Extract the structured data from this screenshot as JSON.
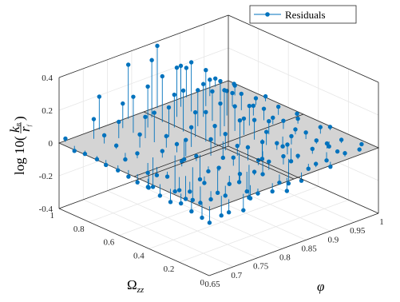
{
  "chart_data": {
    "type": "scatter",
    "subtype": "3d-stem",
    "legend": {
      "label": "Residuals",
      "position": "top-right"
    },
    "colors": {
      "marker": "#0072BD",
      "plane": "#d4d4d4",
      "axis": "#262626",
      "grid": "#e6e6e6"
    },
    "grid": true,
    "x_axis": {
      "label": "φ",
      "range": [
        0.65,
        1.0
      ],
      "ticks": [
        {
          "v": 0.65,
          "label": "0.65"
        },
        {
          "v": 0.7,
          "label": "0.7"
        },
        {
          "v": 0.75,
          "label": "0.75"
        },
        {
          "v": 0.8,
          "label": "0.8"
        },
        {
          "v": 0.85,
          "label": "0.85"
        },
        {
          "v": 0.9,
          "label": "0.9"
        },
        {
          "v": 0.95,
          "label": "0.95"
        },
        {
          "v": 1.0,
          "label": "1"
        }
      ]
    },
    "y_axis": {
      "label_main": "Ω",
      "label_sub": "zz",
      "range": [
        0,
        1
      ],
      "ticks": [
        {
          "v": 0,
          "label": "0"
        },
        {
          "v": 0.2,
          "label": "0.2"
        },
        {
          "v": 0.4,
          "label": "0.4"
        },
        {
          "v": 0.6,
          "label": "0.6"
        },
        {
          "v": 0.8,
          "label": "0.8"
        },
        {
          "v": 1,
          "label": "1"
        }
      ]
    },
    "z_axis": {
      "label_prefix": "log 10(",
      "label_num": "k",
      "label_num_sub": "B",
      "label_den": "r",
      "label_den_sub": "f",
      "label_suffix": ")",
      "range": [
        -0.4,
        0.4
      ],
      "ticks": [
        {
          "v": -0.4,
          "label": "-0.4"
        },
        {
          "v": -0.2,
          "label": "-0.2"
        },
        {
          "v": 0,
          "label": "0"
        },
        {
          "v": 0.2,
          "label": "0.2"
        },
        {
          "v": 0.4,
          "label": "0.4"
        }
      ]
    },
    "points": [
      [
        0.66,
        0.99,
        0.02
      ],
      [
        0.66,
        0.93,
        -0.03
      ],
      [
        0.66,
        0.86,
        -0.02
      ],
      [
        0.66,
        0.78,
        -0.02
      ],
      [
        0.66,
        0.72,
        -0.03
      ],
      [
        0.66,
        0.64,
        -0.03
      ],
      [
        0.66,
        0.57,
        -0.04
      ],
      [
        0.66,
        0.51,
        -0.05
      ],
      [
        0.66,
        0.44,
        -0.05
      ],
      [
        0.66,
        0.36,
        -0.07
      ],
      [
        0.66,
        0.29,
        -0.08
      ],
      [
        0.66,
        0.22,
        -0.06
      ],
      [
        0.66,
        0.15,
        -0.08
      ],
      [
        0.66,
        0.08,
        -0.09
      ],
      [
        0.66,
        0.03,
        -0.1
      ],
      [
        0.7,
        0.93,
        0.12
      ],
      [
        0.7,
        0.86,
        0.05
      ],
      [
        0.7,
        0.78,
        0.02
      ],
      [
        0.7,
        0.72,
        -0.04
      ],
      [
        0.7,
        0.64,
        0.03
      ],
      [
        0.7,
        0.57,
        -0.06
      ],
      [
        0.7,
        0.51,
        -0.05
      ],
      [
        0.7,
        0.44,
        -0.03
      ],
      [
        0.7,
        0.36,
        -0.08
      ],
      [
        0.7,
        0.29,
        -0.06
      ],
      [
        0.7,
        0.22,
        -0.1
      ],
      [
        0.7,
        0.15,
        -0.05
      ],
      [
        0.7,
        0.08,
        -0.12
      ],
      [
        0.7,
        0.03,
        -0.08
      ],
      [
        0.73,
        0.99,
        0.2
      ],
      [
        0.73,
        0.86,
        0.1
      ],
      [
        0.73,
        0.72,
        0.08
      ],
      [
        0.73,
        0.57,
        0.04
      ],
      [
        0.73,
        0.44,
        0.03
      ],
      [
        0.73,
        0.29,
        -0.04
      ],
      [
        0.73,
        0.15,
        -0.06
      ],
      [
        0.73,
        0.03,
        -0.1
      ],
      [
        0.76,
        0.93,
        0.15
      ],
      [
        0.76,
        0.86,
        0.22
      ],
      [
        0.76,
        0.78,
        0.13
      ],
      [
        0.76,
        0.72,
        0.18
      ],
      [
        0.76,
        0.64,
        0.07
      ],
      [
        0.76,
        0.57,
        0.05
      ],
      [
        0.76,
        0.51,
        0.1
      ],
      [
        0.76,
        0.44,
        0.03
      ],
      [
        0.76,
        0.36,
        -0.03
      ],
      [
        0.76,
        0.29,
        0.02
      ],
      [
        0.76,
        0.22,
        -0.05
      ],
      [
        0.76,
        0.15,
        0.04
      ],
      [
        0.76,
        0.08,
        -0.08
      ],
      [
        0.76,
        0.03,
        -0.03
      ],
      [
        0.79,
        0.99,
        0.33
      ],
      [
        0.79,
        0.86,
        0.25
      ],
      [
        0.79,
        0.72,
        0.18
      ],
      [
        0.79,
        0.57,
        0.12
      ],
      [
        0.79,
        0.44,
        0.1
      ],
      [
        0.79,
        0.29,
        0.05
      ],
      [
        0.79,
        0.15,
        0.02
      ],
      [
        0.79,
        0.03,
        -0.05
      ],
      [
        0.82,
        0.93,
        0.35
      ],
      [
        0.82,
        0.86,
        0.28
      ],
      [
        0.82,
        0.78,
        0.2
      ],
      [
        0.82,
        0.72,
        0.25
      ],
      [
        0.82,
        0.64,
        0.15
      ],
      [
        0.82,
        0.57,
        0.18
      ],
      [
        0.82,
        0.51,
        0.12
      ],
      [
        0.82,
        0.44,
        0.1
      ],
      [
        0.82,
        0.36,
        0.06
      ],
      [
        0.82,
        0.29,
        0.08
      ],
      [
        0.82,
        0.22,
        0.03
      ],
      [
        0.82,
        0.15,
        0.05
      ],
      [
        0.82,
        0.08,
        -0.05
      ],
      [
        0.82,
        0.03,
        -0.08
      ],
      [
        0.85,
        0.99,
        0.38
      ],
      [
        0.85,
        0.86,
        0.3
      ],
      [
        0.85,
        0.72,
        0.22
      ],
      [
        0.85,
        0.57,
        0.2
      ],
      [
        0.85,
        0.44,
        0.15
      ],
      [
        0.85,
        0.29,
        0.08
      ],
      [
        0.85,
        0.15,
        0.05
      ],
      [
        0.85,
        0.03,
        -0.05
      ],
      [
        0.88,
        0.93,
        0.25
      ],
      [
        0.88,
        0.86,
        0.3
      ],
      [
        0.88,
        0.78,
        0.2
      ],
      [
        0.88,
        0.72,
        0.18
      ],
      [
        0.88,
        0.64,
        0.22
      ],
      [
        0.88,
        0.57,
        0.15
      ],
      [
        0.88,
        0.51,
        0.1
      ],
      [
        0.88,
        0.44,
        0.12
      ],
      [
        0.88,
        0.36,
        0.08
      ],
      [
        0.88,
        0.29,
        0.04
      ],
      [
        0.88,
        0.22,
        0.06
      ],
      [
        0.88,
        0.15,
        0.02
      ],
      [
        0.88,
        0.08,
        -0.03
      ],
      [
        0.88,
        0.03,
        0.02
      ],
      [
        0.91,
        0.99,
        0.18
      ],
      [
        0.91,
        0.86,
        0.22
      ],
      [
        0.91,
        0.72,
        0.15
      ],
      [
        0.91,
        0.57,
        0.12
      ],
      [
        0.91,
        0.44,
        0.08
      ],
      [
        0.91,
        0.29,
        0.05
      ],
      [
        0.91,
        0.15,
        0.03
      ],
      [
        0.91,
        0.03,
        -0.03
      ],
      [
        0.94,
        0.93,
        0.1
      ],
      [
        0.94,
        0.86,
        0.12
      ],
      [
        0.94,
        0.78,
        0.08
      ],
      [
        0.94,
        0.72,
        0.1
      ],
      [
        0.94,
        0.64,
        0.06
      ],
      [
        0.94,
        0.57,
        0.07
      ],
      [
        0.94,
        0.51,
        0.04
      ],
      [
        0.94,
        0.44,
        0.05
      ],
      [
        0.94,
        0.36,
        0.03
      ],
      [
        0.94,
        0.29,
        0.04
      ],
      [
        0.94,
        0.22,
        0.02
      ],
      [
        0.94,
        0.15,
        0.03
      ],
      [
        0.94,
        0.08,
        0.01
      ],
      [
        0.94,
        0.03,
        0.02
      ],
      [
        0.97,
        0.99,
        0.05
      ],
      [
        0.97,
        0.86,
        0.06
      ],
      [
        0.97,
        0.72,
        0.04
      ],
      [
        0.97,
        0.57,
        0.05
      ],
      [
        0.97,
        0.44,
        0.03
      ],
      [
        0.97,
        0.29,
        0.04
      ],
      [
        0.97,
        0.15,
        0.02
      ],
      [
        0.97,
        0.03,
        0.01
      ],
      [
        0.99,
        0.93,
        0.02
      ],
      [
        0.99,
        0.72,
        0.03
      ],
      [
        0.99,
        0.51,
        0.01
      ],
      [
        0.99,
        0.29,
        0.02
      ],
      [
        0.99,
        0.08,
        0.0
      ],
      [
        0.72,
        0.6,
        -0.18
      ],
      [
        0.75,
        0.55,
        -0.22
      ],
      [
        0.78,
        0.48,
        -0.15
      ],
      [
        0.8,
        0.65,
        -0.12
      ],
      [
        0.74,
        0.4,
        -0.2
      ],
      [
        0.83,
        0.38,
        -0.18
      ],
      [
        0.86,
        0.32,
        -0.14
      ],
      [
        0.89,
        0.42,
        -0.12
      ],
      [
        0.77,
        0.33,
        -0.16
      ],
      [
        0.81,
        0.25,
        -0.2
      ],
      [
        0.84,
        0.52,
        -0.1
      ],
      [
        0.87,
        0.18,
        -0.15
      ],
      [
        0.9,
        0.26,
        -0.08
      ],
      [
        0.92,
        0.38,
        -0.06
      ],
      [
        0.79,
        0.2,
        -0.12
      ],
      [
        0.71,
        0.35,
        -0.14
      ],
      [
        0.68,
        0.5,
        -0.1
      ],
      [
        0.93,
        0.12,
        -0.05
      ],
      [
        0.96,
        0.2,
        -0.03
      ]
    ]
  }
}
